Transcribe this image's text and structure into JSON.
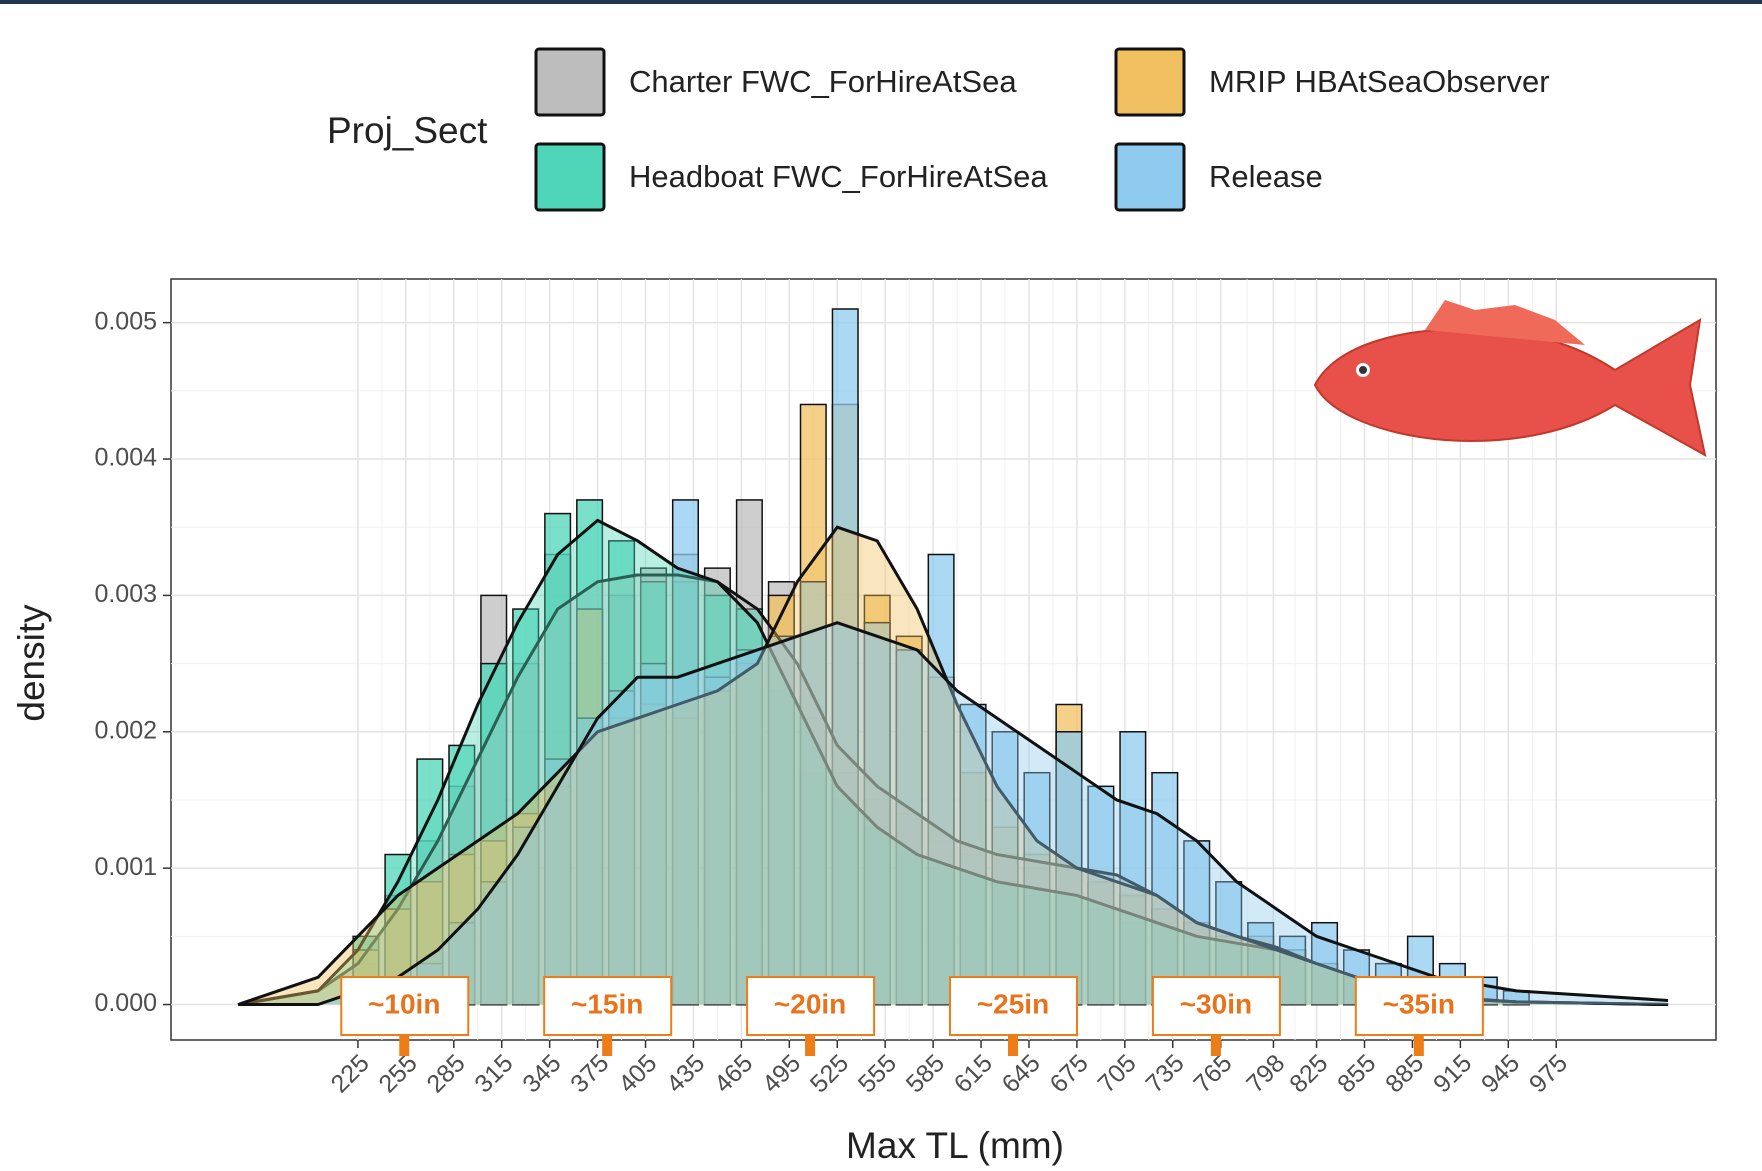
{
  "chart_data": {
    "type": "histogram",
    "x_label": "Max TL (mm)",
    "y_label": "density",
    "legend_title": "Proj_Sect",
    "xlim": [
      108,
      1075
    ],
    "ylim": [
      -0.00026,
      0.00532
    ],
    "xticks": [
      225,
      255,
      285,
      315,
      345,
      375,
      405,
      435,
      465,
      495,
      525,
      555,
      585,
      615,
      645,
      675,
      705,
      735,
      765,
      798,
      825,
      855,
      885,
      915,
      945,
      975
    ],
    "yticks": [
      {
        "value": 0,
        "label": "0.000"
      },
      {
        "value": 0.001,
        "label": "0.001"
      },
      {
        "value": 0.002,
        "label": "0.002"
      },
      {
        "value": 0.003,
        "label": "0.003"
      },
      {
        "value": 0.004,
        "label": "0.004"
      },
      {
        "value": 0.005,
        "label": "0.005"
      }
    ],
    "grid": true,
    "bins": [
      220,
      240,
      260,
      280,
      300,
      320,
      340,
      360,
      380,
      400,
      420,
      440,
      460,
      480,
      500,
      520,
      540,
      560,
      580,
      600,
      620,
      640,
      660,
      680,
      700,
      720,
      740,
      760,
      780,
      800,
      820,
      840,
      860,
      880,
      900,
      920,
      940,
      960
    ],
    "density_x": [
      150,
      200,
      225,
      250,
      275,
      300,
      325,
      350,
      375,
      400,
      425,
      450,
      475,
      500,
      525,
      550,
      575,
      600,
      625,
      650,
      675,
      700,
      725,
      750,
      775,
      800,
      825,
      850,
      875,
      900,
      950,
      1045
    ],
    "series": [
      {
        "name": "Charter FWC_ForHireAtSea",
        "color": "#bdbdbd",
        "values": [
          0.0003,
          0.0008,
          0.0012,
          0.0016,
          0.003,
          0.0025,
          0.0033,
          0.0029,
          0.003,
          0.0032,
          0.0033,
          0.0032,
          0.0037,
          0.0031,
          0.0021,
          0.0017,
          0.0015,
          0.0014,
          0.0012,
          0.0011,
          0.0011,
          0.001,
          0.001,
          0.0009,
          0.0008,
          0.0007,
          0.0006,
          0.0005,
          0.0004,
          0.0003,
          0.0003,
          0.0002,
          0.0001,
          0.0001,
          5e-05,
          3e-05,
          2e-05
        ],
        "density": [
          0,
          0.0001,
          0.0003,
          0.0007,
          0.0012,
          0.0018,
          0.0024,
          0.0029,
          0.0031,
          0.00315,
          0.00315,
          0.0031,
          0.0029,
          0.0025,
          0.0019,
          0.0016,
          0.0014,
          0.0012,
          0.0011,
          0.00105,
          0.001,
          0.00095,
          0.0008,
          0.0006,
          0.0005,
          0.00042,
          0.0003,
          0.0002,
          0.00012,
          6e-05,
          2e-05,
          0
        ]
      },
      {
        "name": "Headboat FWC_ForHireAtSea",
        "color": "#4fd6b8",
        "values": [
          0.0005,
          0.0011,
          0.0018,
          0.0019,
          0.0025,
          0.0029,
          0.0036,
          0.0037,
          0.0034,
          0.0031,
          0.0031,
          0.003,
          0.0029,
          0.0023,
          0.0017,
          0.0015,
          0.0013,
          0.0011,
          0.001,
          0.0011,
          0.0009,
          0.0008,
          0.0008,
          0.0007,
          0.0006,
          0.0006,
          0.0005,
          0.0005,
          0.0004,
          0.0004,
          0.0003,
          0.0002,
          0.0001,
          0.0001,
          5e-05,
          3e-05,
          2e-05
        ],
        "density": [
          0,
          0.0001,
          0.0004,
          0.0009,
          0.0015,
          0.0022,
          0.0028,
          0.0033,
          0.00355,
          0.0034,
          0.0032,
          0.0031,
          0.0028,
          0.0022,
          0.0016,
          0.0013,
          0.0011,
          0.001,
          0.0009,
          0.00085,
          0.0008,
          0.0007,
          0.0006,
          0.0005,
          0.00045,
          0.0004,
          0.0003,
          0.0002,
          0.0001,
          5e-05,
          2e-05,
          0
        ]
      },
      {
        "name": "MRIP HBAtSeaObserver",
        "color": "#f0c060",
        "values": [
          0.0004,
          0.0007,
          0.0009,
          0.0011,
          0.0012,
          0.0014,
          0.0016,
          0.0029,
          0.0021,
          0.0022,
          0.0021,
          0.0023,
          0.0025,
          0.003,
          0.0044,
          0.0044,
          0.003,
          0.0027,
          0.0024,
          0.0017,
          0.0013,
          0.0011,
          0.0022,
          0.0009,
          0.0008,
          0.0007,
          0.0006,
          0.0005,
          0.0005,
          0.0004,
          0.0003,
          0.0002,
          0.0001,
          0.0001,
          5e-05,
          3e-05,
          2e-05
        ],
        "density": [
          0,
          0.0002,
          0.0005,
          0.0008,
          0.001,
          0.0012,
          0.0014,
          0.0017,
          0.002,
          0.0021,
          0.0022,
          0.0023,
          0.0025,
          0.0031,
          0.0035,
          0.0034,
          0.0029,
          0.0022,
          0.0016,
          0.0012,
          0.001,
          0.0009,
          0.0008,
          0.0006,
          0.0005,
          0.0004,
          0.0003,
          0.0002,
          0.0001,
          5e-05,
          2e-05,
          0
        ]
      },
      {
        "name": "Release",
        "color": "#8fcbee",
        "values": [
          0.0001,
          0.0002,
          0.0003,
          0.0006,
          0.0009,
          0.0013,
          0.0018,
          0.0021,
          0.0023,
          0.0025,
          0.0037,
          0.0024,
          0.0026,
          0.0027,
          0.0031,
          0.0051,
          0.0028,
          0.0026,
          0.0033,
          0.0022,
          0.002,
          0.0017,
          0.002,
          0.0016,
          0.002,
          0.0017,
          0.0012,
          0.0009,
          0.0006,
          0.0005,
          0.0006,
          0.0004,
          0.0003,
          0.0005,
          0.0003,
          0.0002,
          0.0001
        ],
        "density": [
          0,
          0,
          0.0001,
          0.0002,
          0.0004,
          0.0007,
          0.0011,
          0.0016,
          0.0021,
          0.0024,
          0.0024,
          0.0025,
          0.0026,
          0.0027,
          0.0028,
          0.0027,
          0.0026,
          0.0023,
          0.0021,
          0.0019,
          0.0017,
          0.0015,
          0.0014,
          0.0012,
          0.0009,
          0.0007,
          0.0005,
          0.0004,
          0.0003,
          0.0002,
          0.0001,
          3e-05
        ]
      }
    ],
    "annotations": [
      {
        "text": "~10in",
        "x": 254
      },
      {
        "text": "~15in",
        "x": 381
      },
      {
        "text": "~20in",
        "x": 508
      },
      {
        "text": "~25in",
        "x": 635
      },
      {
        "text": "~30in",
        "x": 762
      },
      {
        "text": "~35in",
        "x": 889
      }
    ]
  }
}
